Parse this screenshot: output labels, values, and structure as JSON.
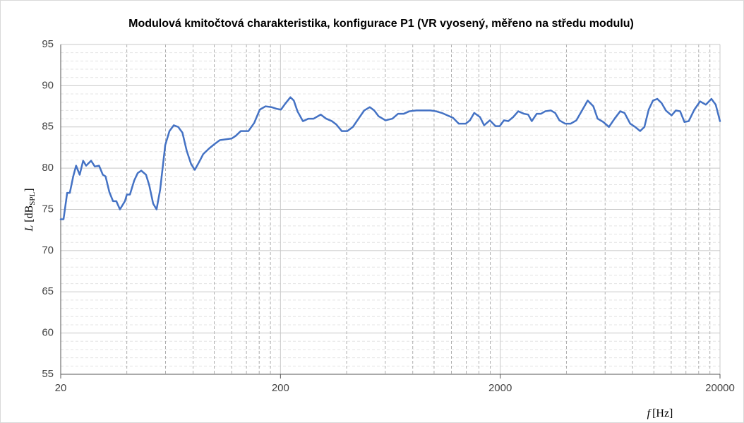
{
  "chart_data": {
    "type": "line",
    "title": "Modulová kmitočtová charakteristika, konfigurace P1 (VR vyosený, měřeno na středu modulu)",
    "xlabel": {
      "symbol": "f",
      "unit": "[Hz]"
    },
    "ylabel": {
      "symbol": "L",
      "unit": "[dB",
      "subscript": "SPL",
      "close": "]"
    },
    "xscale": "log",
    "grid": true,
    "xlim": [
      20,
      20000
    ],
    "xticks": [
      20,
      200,
      2000,
      20000
    ],
    "ylim": [
      55,
      95
    ],
    "yticks": [
      55,
      60,
      65,
      70,
      75,
      80,
      85,
      90,
      95
    ],
    "x": [
      20,
      20.6,
      21.4,
      22,
      22.8,
      23.5,
      24.4,
      25.3,
      26.1,
      27.5,
      28.6,
      29.9,
      31.1,
      32,
      33.3,
      34.6,
      35.8,
      37.2,
      39.2,
      40,
      41.3,
      43.2,
      44.8,
      46.5,
      48.9,
      50.6,
      52.7,
      54.6,
      56.7,
      59.8,
      62.5,
      65.4,
      68.5,
      71.6,
      74.9,
      78.4,
      81.5,
      85.1,
      89,
      94.8,
      100,
      106,
      113,
      120,
      125,
      132,
      143,
      152,
      161,
      171,
      182,
      192,
      201,
      210,
      222,
      230,
      239,
      253,
      268,
      283,
      305,
      323,
      343,
      359,
      380,
      403,
      427,
      453,
      481,
      510,
      534,
      559,
      601,
      646,
      686,
      728,
      772,
      831,
      894,
      962,
      1020,
      1084,
      1150,
      1220,
      1295,
      1393,
      1456,
      1523,
      1617,
      1689,
      1793,
      1904,
      1989,
      2080,
      2175,
      2291,
      2416,
      2563,
      2680,
      2783,
      2932,
      3065,
      3205,
      3401,
      3556,
      3718,
      3945,
      4186,
      4441,
      4713,
      5000,
      5305,
      5548,
      5887,
      6247,
      6627,
      7031,
      7355,
      7803,
      8220,
      8659,
      9058,
      9475,
      9911,
      10370,
      10840,
      11340,
      12040,
      12590,
      13170,
      13780,
      14410,
      15290,
      16230,
      17230,
      18280,
      19120,
      20000
    ],
    "series": [
      {
        "name": "P1",
        "color": "#4472c4",
        "values": [
          73.8,
          73.8,
          77.0,
          77.0,
          79.0,
          80.3,
          79.2,
          80.9,
          80.3,
          80.9,
          80.2,
          80.3,
          79.2,
          79.0,
          77.1,
          76.0,
          76.0,
          75.0,
          76.0,
          76.8,
          76.8,
          78.5,
          79.4,
          79.7,
          79.2,
          77.9,
          75.7,
          75.0,
          77.4,
          82.8,
          84.5,
          85.2,
          85.0,
          84.3,
          82.1,
          80.5,
          79.8,
          80.7,
          81.7,
          82.4,
          82.9,
          83.4,
          83.5,
          83.6,
          83.9,
          84.5,
          84.5,
          85.5,
          87.1,
          87.5,
          87.4,
          87.2,
          87.1,
          87.8,
          88.6,
          88.2,
          86.9,
          85.7,
          86.0,
          86.0,
          86.5,
          86.0,
          85.7,
          85.3,
          84.5,
          84.5,
          85.0,
          86.0,
          87.0,
          87.4,
          87.0,
          86.3,
          85.8,
          86.0,
          86.6,
          86.6,
          86.9,
          87.0,
          87.0,
          87.0,
          86.9,
          86.7,
          86.4,
          86.1,
          85.4,
          85.4,
          85.8,
          86.7,
          86.2,
          85.2,
          85.8,
          85.1,
          85.1,
          85.8,
          85.7,
          86.2,
          86.9,
          86.6,
          86.5,
          85.7,
          86.6,
          86.6,
          86.9,
          87.0,
          86.7,
          85.8,
          85.4,
          85.4,
          85.8,
          87.0,
          88.2,
          87.5,
          86.0,
          85.6,
          85.0,
          86.0,
          86.9,
          86.7,
          85.4,
          85.0,
          84.5,
          85.0,
          87.1,
          88.2,
          88.4,
          87.9,
          87.0,
          86.4,
          87.0,
          86.9,
          85.6,
          85.7,
          87.1,
          88.1,
          87.7,
          88.4,
          87.7,
          85.7
        ]
      }
    ]
  }
}
